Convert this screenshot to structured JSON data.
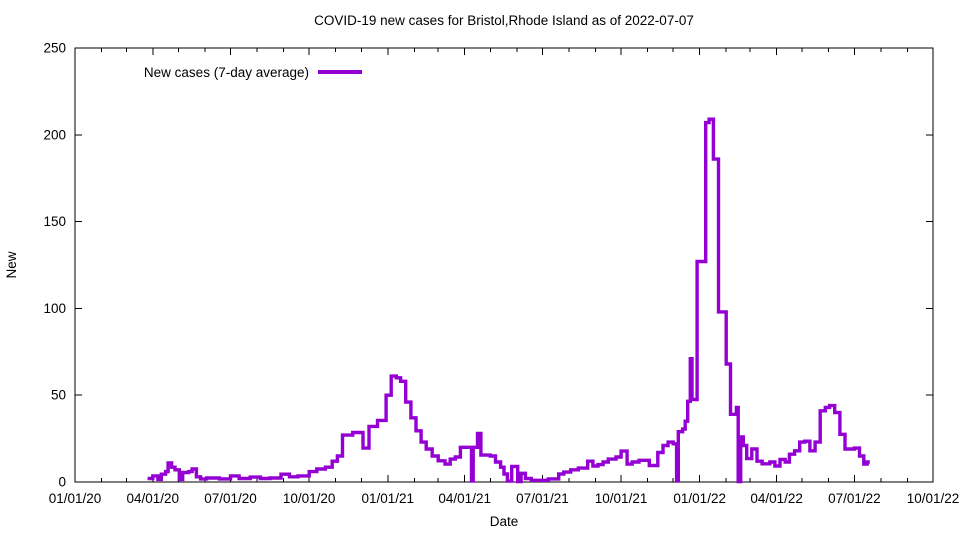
{
  "chart_data": {
    "type": "line",
    "line_style": "steps",
    "title": "COVID-19 new cases for Bristol,Rhode Island as of 2022-07-07",
    "xlabel": "Date",
    "ylabel": "New",
    "grid": false,
    "legend_position": "top-left",
    "axis_color": "#000000",
    "background_color": "#ffffff",
    "x_range": [
      "2020-01-01",
      "2022-10-01"
    ],
    "ylim": [
      0,
      250
    ],
    "y_ticks": [
      0,
      50,
      100,
      150,
      200,
      250
    ],
    "x_ticks": [
      {
        "date": "2020-01-01",
        "label": "01/01/20"
      },
      {
        "date": "2020-04-01",
        "label": "04/01/20"
      },
      {
        "date": "2020-07-01",
        "label": "07/01/20"
      },
      {
        "date": "2020-10-01",
        "label": "10/01/20"
      },
      {
        "date": "2021-01-01",
        "label": "01/01/21"
      },
      {
        "date": "2021-04-01",
        "label": "04/01/21"
      },
      {
        "date": "2021-07-01",
        "label": "07/01/21"
      },
      {
        "date": "2021-10-01",
        "label": "10/01/21"
      },
      {
        "date": "2022-01-01",
        "label": "01/01/22"
      },
      {
        "date": "2022-04-01",
        "label": "04/01/22"
      },
      {
        "date": "2022-07-01",
        "label": "07/01/22"
      },
      {
        "date": "2022-10-01",
        "label": "10/01/22"
      }
    ],
    "x_minor_tick_interval": "1 month",
    "series": [
      {
        "name": "New cases (7-day average)",
        "color": "#9400d3",
        "points": [
          [
            "2020-03-26",
            2
          ],
          [
            "2020-04-01",
            3.5
          ],
          [
            "2020-04-07",
            1.5
          ],
          [
            "2020-04-11",
            4.5
          ],
          [
            "2020-04-16",
            6
          ],
          [
            "2020-04-19",
            11
          ],
          [
            "2020-04-23",
            8.5
          ],
          [
            "2020-04-27",
            7
          ],
          [
            "2020-05-02",
            1.5
          ],
          [
            "2020-05-06",
            5.5
          ],
          [
            "2020-05-13",
            6
          ],
          [
            "2020-05-17",
            7.5
          ],
          [
            "2020-05-22",
            3
          ],
          [
            "2020-05-27",
            1.8
          ],
          [
            "2020-06-03",
            2.3
          ],
          [
            "2020-06-18",
            1.8
          ],
          [
            "2020-07-01",
            3.5
          ],
          [
            "2020-07-11",
            2
          ],
          [
            "2020-07-24",
            2.8
          ],
          [
            "2020-08-05",
            2
          ],
          [
            "2020-08-16",
            2.3
          ],
          [
            "2020-08-29",
            4.5
          ],
          [
            "2020-09-08",
            3
          ],
          [
            "2020-09-18",
            3.5
          ],
          [
            "2020-10-01",
            6
          ],
          [
            "2020-10-10",
            7.5
          ],
          [
            "2020-10-20",
            8.5
          ],
          [
            "2020-10-28",
            12
          ],
          [
            "2020-11-03",
            15
          ],
          [
            "2020-11-09",
            27
          ],
          [
            "2020-11-21",
            28.5
          ],
          [
            "2020-12-03",
            19.5
          ],
          [
            "2020-12-10",
            32
          ],
          [
            "2020-12-20",
            35.5
          ],
          [
            "2020-12-30",
            50
          ],
          [
            "2021-01-05",
            61
          ],
          [
            "2021-01-11",
            60
          ],
          [
            "2021-01-16",
            58
          ],
          [
            "2021-01-22",
            46
          ],
          [
            "2021-01-28",
            37
          ],
          [
            "2021-02-03",
            29.5
          ],
          [
            "2021-02-09",
            23
          ],
          [
            "2021-02-15",
            19
          ],
          [
            "2021-02-22",
            15
          ],
          [
            "2021-03-01",
            12.2
          ],
          [
            "2021-03-09",
            10.3
          ],
          [
            "2021-03-15",
            13.2
          ],
          [
            "2021-03-21",
            14.4
          ],
          [
            "2021-03-27",
            20
          ],
          [
            "2021-04-09",
            0.5
          ],
          [
            "2021-04-11",
            20
          ],
          [
            "2021-04-16",
            28
          ],
          [
            "2021-04-20",
            15.5
          ],
          [
            "2021-05-01",
            15
          ],
          [
            "2021-05-07",
            11.5
          ],
          [
            "2021-05-13",
            8.5
          ],
          [
            "2021-05-17",
            4.6
          ],
          [
            "2021-05-21",
            0.5
          ],
          [
            "2021-05-26",
            9
          ],
          [
            "2021-06-02",
            0.3
          ],
          [
            "2021-06-06",
            5
          ],
          [
            "2021-06-11",
            2
          ],
          [
            "2021-06-18",
            1
          ],
          [
            "2021-07-08",
            1.8
          ],
          [
            "2021-07-20",
            4.6
          ],
          [
            "2021-07-26",
            5.7
          ],
          [
            "2021-08-03",
            7
          ],
          [
            "2021-08-12",
            8
          ],
          [
            "2021-08-23",
            12
          ],
          [
            "2021-08-29",
            9.2
          ],
          [
            "2021-09-04",
            10
          ],
          [
            "2021-09-10",
            11.5
          ],
          [
            "2021-09-16",
            13.2
          ],
          [
            "2021-09-25",
            14.4
          ],
          [
            "2021-10-01",
            17.8
          ],
          [
            "2021-10-08",
            10.3
          ],
          [
            "2021-10-14",
            11.5
          ],
          [
            "2021-10-22",
            12.5
          ],
          [
            "2021-11-03",
            9.5
          ],
          [
            "2021-11-13",
            17
          ],
          [
            "2021-11-19",
            21
          ],
          [
            "2021-11-25",
            23
          ],
          [
            "2021-12-01",
            22
          ],
          [
            "2021-12-05",
            0.5
          ],
          [
            "2021-12-07",
            29
          ],
          [
            "2021-12-12",
            30.5
          ],
          [
            "2021-12-15",
            35
          ],
          [
            "2021-12-18",
            46.5
          ],
          [
            "2021-12-21",
            71
          ],
          [
            "2021-12-23",
            47.5
          ],
          [
            "2021-12-29",
            127
          ],
          [
            "2022-01-08",
            207
          ],
          [
            "2022-01-12",
            209
          ],
          [
            "2022-01-17",
            186
          ],
          [
            "2022-01-23",
            98
          ],
          [
            "2022-02-01",
            68
          ],
          [
            "2022-02-06",
            39
          ],
          [
            "2022-02-13",
            43
          ],
          [
            "2022-02-15",
            0.3
          ],
          [
            "2022-02-18",
            26
          ],
          [
            "2022-02-21",
            21
          ],
          [
            "2022-02-25",
            13.5
          ],
          [
            "2022-03-03",
            19
          ],
          [
            "2022-03-09",
            12
          ],
          [
            "2022-03-15",
            10.5
          ],
          [
            "2022-03-24",
            11.5
          ],
          [
            "2022-03-30",
            9.2
          ],
          [
            "2022-04-05",
            13
          ],
          [
            "2022-04-11",
            11.5
          ],
          [
            "2022-04-16",
            16
          ],
          [
            "2022-04-22",
            18
          ],
          [
            "2022-04-28",
            23
          ],
          [
            "2022-05-04",
            23.5
          ],
          [
            "2022-05-10",
            18
          ],
          [
            "2022-05-16",
            23
          ],
          [
            "2022-05-22",
            41
          ],
          [
            "2022-05-28",
            43
          ],
          [
            "2022-06-02",
            44
          ],
          [
            "2022-06-08",
            40
          ],
          [
            "2022-06-14",
            27.5
          ],
          [
            "2022-06-20",
            19
          ],
          [
            "2022-07-01",
            19.5
          ],
          [
            "2022-07-07",
            15
          ],
          [
            "2022-07-12",
            10.3
          ],
          [
            "2022-07-16",
            11.5
          ],
          [
            "2022-07-19",
            11.5
          ]
        ]
      }
    ]
  }
}
